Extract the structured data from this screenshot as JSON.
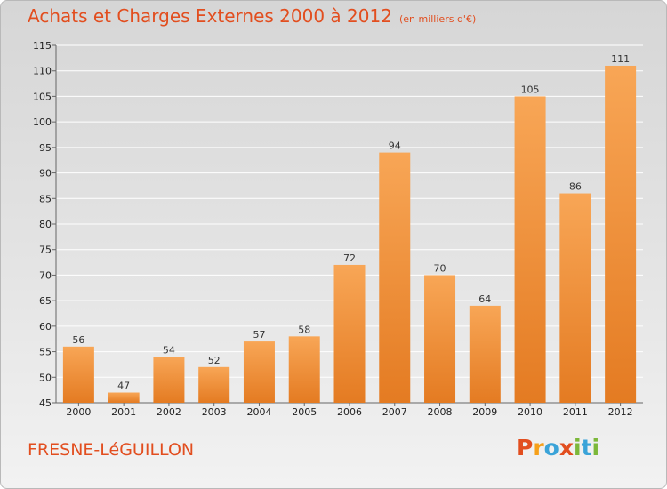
{
  "title": "Achats et Charges Externes 2000 à 2012",
  "subtitle": "(en milliers d'€)",
  "place": "FRESNE-LéGUILLON",
  "brand": "Proxiti",
  "colors": {
    "accent": "#e24e1f",
    "bar_top": "#f8a656",
    "bar_bottom": "#e47b22"
  },
  "chart_data": {
    "type": "bar",
    "title": "Achats et Charges Externes 2000 à 2012",
    "subtitle": "(en milliers d'€)",
    "categories": [
      "2000",
      "2001",
      "2002",
      "2003",
      "2004",
      "2005",
      "2006",
      "2007",
      "2008",
      "2009",
      "2010",
      "2011",
      "2012"
    ],
    "values": [
      56,
      47,
      54,
      52,
      57,
      58,
      72,
      94,
      70,
      64,
      105,
      86,
      111
    ],
    "ylim": [
      45,
      115
    ],
    "yticks": [
      45,
      50,
      55,
      60,
      65,
      70,
      75,
      80,
      85,
      90,
      95,
      100,
      105,
      110,
      115
    ],
    "grid": true,
    "xlabel": "",
    "ylabel": ""
  }
}
